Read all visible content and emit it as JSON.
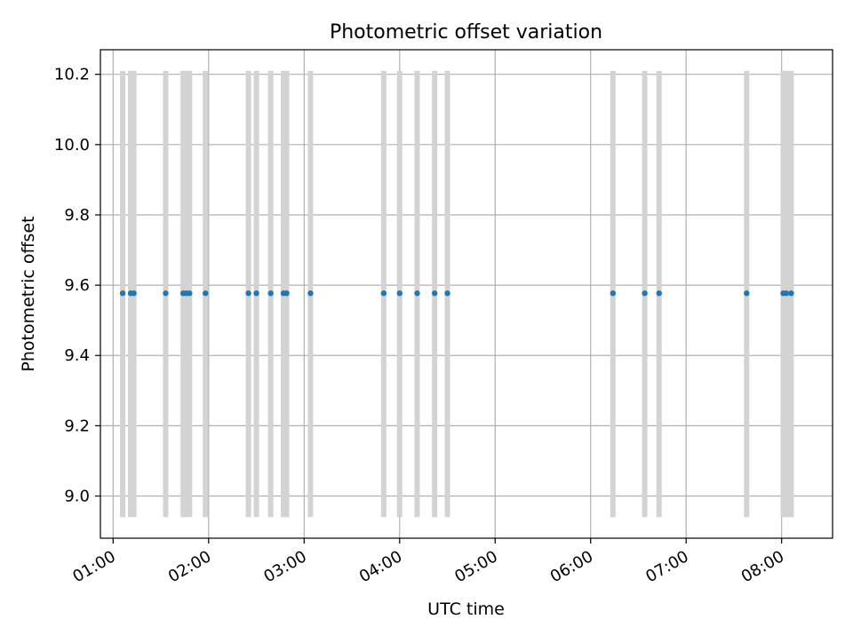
{
  "chart_data": {
    "type": "scatter",
    "title": "Photometric offset variation",
    "xlabel": "UTC time",
    "ylabel": "Photometric offset",
    "x_ticks": [
      "01:00",
      "02:00",
      "03:00",
      "04:00",
      "05:00",
      "06:00",
      "07:00",
      "08:00"
    ],
    "y_ticks": [
      "9.0",
      "9.2",
      "9.4",
      "9.6",
      "9.8",
      "10.0",
      "10.2"
    ],
    "xlim": [
      "00:52",
      "08:32"
    ],
    "ylim": [
      8.88,
      10.27
    ],
    "grid": true,
    "series": [
      {
        "values": [
          {
            "x": "01:06",
            "y": 9.577
          },
          {
            "x": "01:11",
            "y": 9.577
          },
          {
            "x": "01:13",
            "y": 9.577
          },
          {
            "x": "01:33",
            "y": 9.577
          },
          {
            "x": "01:44",
            "y": 9.577
          },
          {
            "x": "01:46",
            "y": 9.577
          },
          {
            "x": "01:48",
            "y": 9.577
          },
          {
            "x": "01:58",
            "y": 9.577
          },
          {
            "x": "02:25",
            "y": 9.577
          },
          {
            "x": "02:30",
            "y": 9.577
          },
          {
            "x": "02:39",
            "y": 9.577
          },
          {
            "x": "02:47",
            "y": 9.577
          },
          {
            "x": "02:49",
            "y": 9.577
          },
          {
            "x": "03:04",
            "y": 9.577
          },
          {
            "x": "03:50",
            "y": 9.577
          },
          {
            "x": "04:00",
            "y": 9.577
          },
          {
            "x": "04:11",
            "y": 9.577
          },
          {
            "x": "04:22",
            "y": 9.577
          },
          {
            "x": "04:30",
            "y": 9.577
          },
          {
            "x": "06:14",
            "y": 9.577
          },
          {
            "x": "06:34",
            "y": 9.577
          },
          {
            "x": "06:43",
            "y": 9.577
          },
          {
            "x": "07:38",
            "y": 9.577
          },
          {
            "x": "08:01",
            "y": 9.577
          },
          {
            "x": "08:03",
            "y": 9.577
          },
          {
            "x": "08:06",
            "y": 9.577
          }
        ]
      }
    ],
    "bands": [
      {
        "x": "01:06",
        "y0": 8.94,
        "y1": 10.21
      },
      {
        "x": "01:11",
        "y0": 8.94,
        "y1": 10.21
      },
      {
        "x": "01:13",
        "y0": 8.94,
        "y1": 10.21
      },
      {
        "x": "01:33",
        "y0": 8.94,
        "y1": 10.21
      },
      {
        "x": "01:44",
        "y0": 8.94,
        "y1": 10.21
      },
      {
        "x": "01:46",
        "y0": 8.94,
        "y1": 10.21
      },
      {
        "x": "01:48",
        "y0": 8.94,
        "y1": 10.21
      },
      {
        "x": "01:58",
        "y0": 8.94,
        "y1": 10.21
      },
      {
        "x": "02:25",
        "y0": 8.94,
        "y1": 10.21
      },
      {
        "x": "02:30",
        "y0": 8.94,
        "y1": 10.21
      },
      {
        "x": "02:39",
        "y0": 8.94,
        "y1": 10.21
      },
      {
        "x": "02:47",
        "y0": 8.94,
        "y1": 10.21
      },
      {
        "x": "02:49",
        "y0": 8.94,
        "y1": 10.21
      },
      {
        "x": "03:04",
        "y0": 8.94,
        "y1": 10.21
      },
      {
        "x": "03:50",
        "y0": 8.94,
        "y1": 10.21
      },
      {
        "x": "04:00",
        "y0": 8.94,
        "y1": 10.21
      },
      {
        "x": "04:11",
        "y0": 8.94,
        "y1": 10.21
      },
      {
        "x": "04:22",
        "y0": 8.94,
        "y1": 10.21
      },
      {
        "x": "04:30",
        "y0": 8.94,
        "y1": 10.21
      },
      {
        "x": "06:14",
        "y0": 8.94,
        "y1": 10.21
      },
      {
        "x": "06:34",
        "y0": 8.94,
        "y1": 10.21
      },
      {
        "x": "06:43",
        "y0": 8.94,
        "y1": 10.21
      },
      {
        "x": "07:38",
        "y0": 8.94,
        "y1": 10.21
      },
      {
        "x": "08:01",
        "y0": 8.94,
        "y1": 10.21
      },
      {
        "x": "08:03",
        "y0": 8.94,
        "y1": 10.21
      },
      {
        "x": "08:06",
        "y0": 8.94,
        "y1": 10.21
      }
    ],
    "colors": {
      "marker": "#1f77b4",
      "band": "#d3d3d3",
      "grid": "#b0b0b0",
      "axes": "#000000"
    }
  }
}
